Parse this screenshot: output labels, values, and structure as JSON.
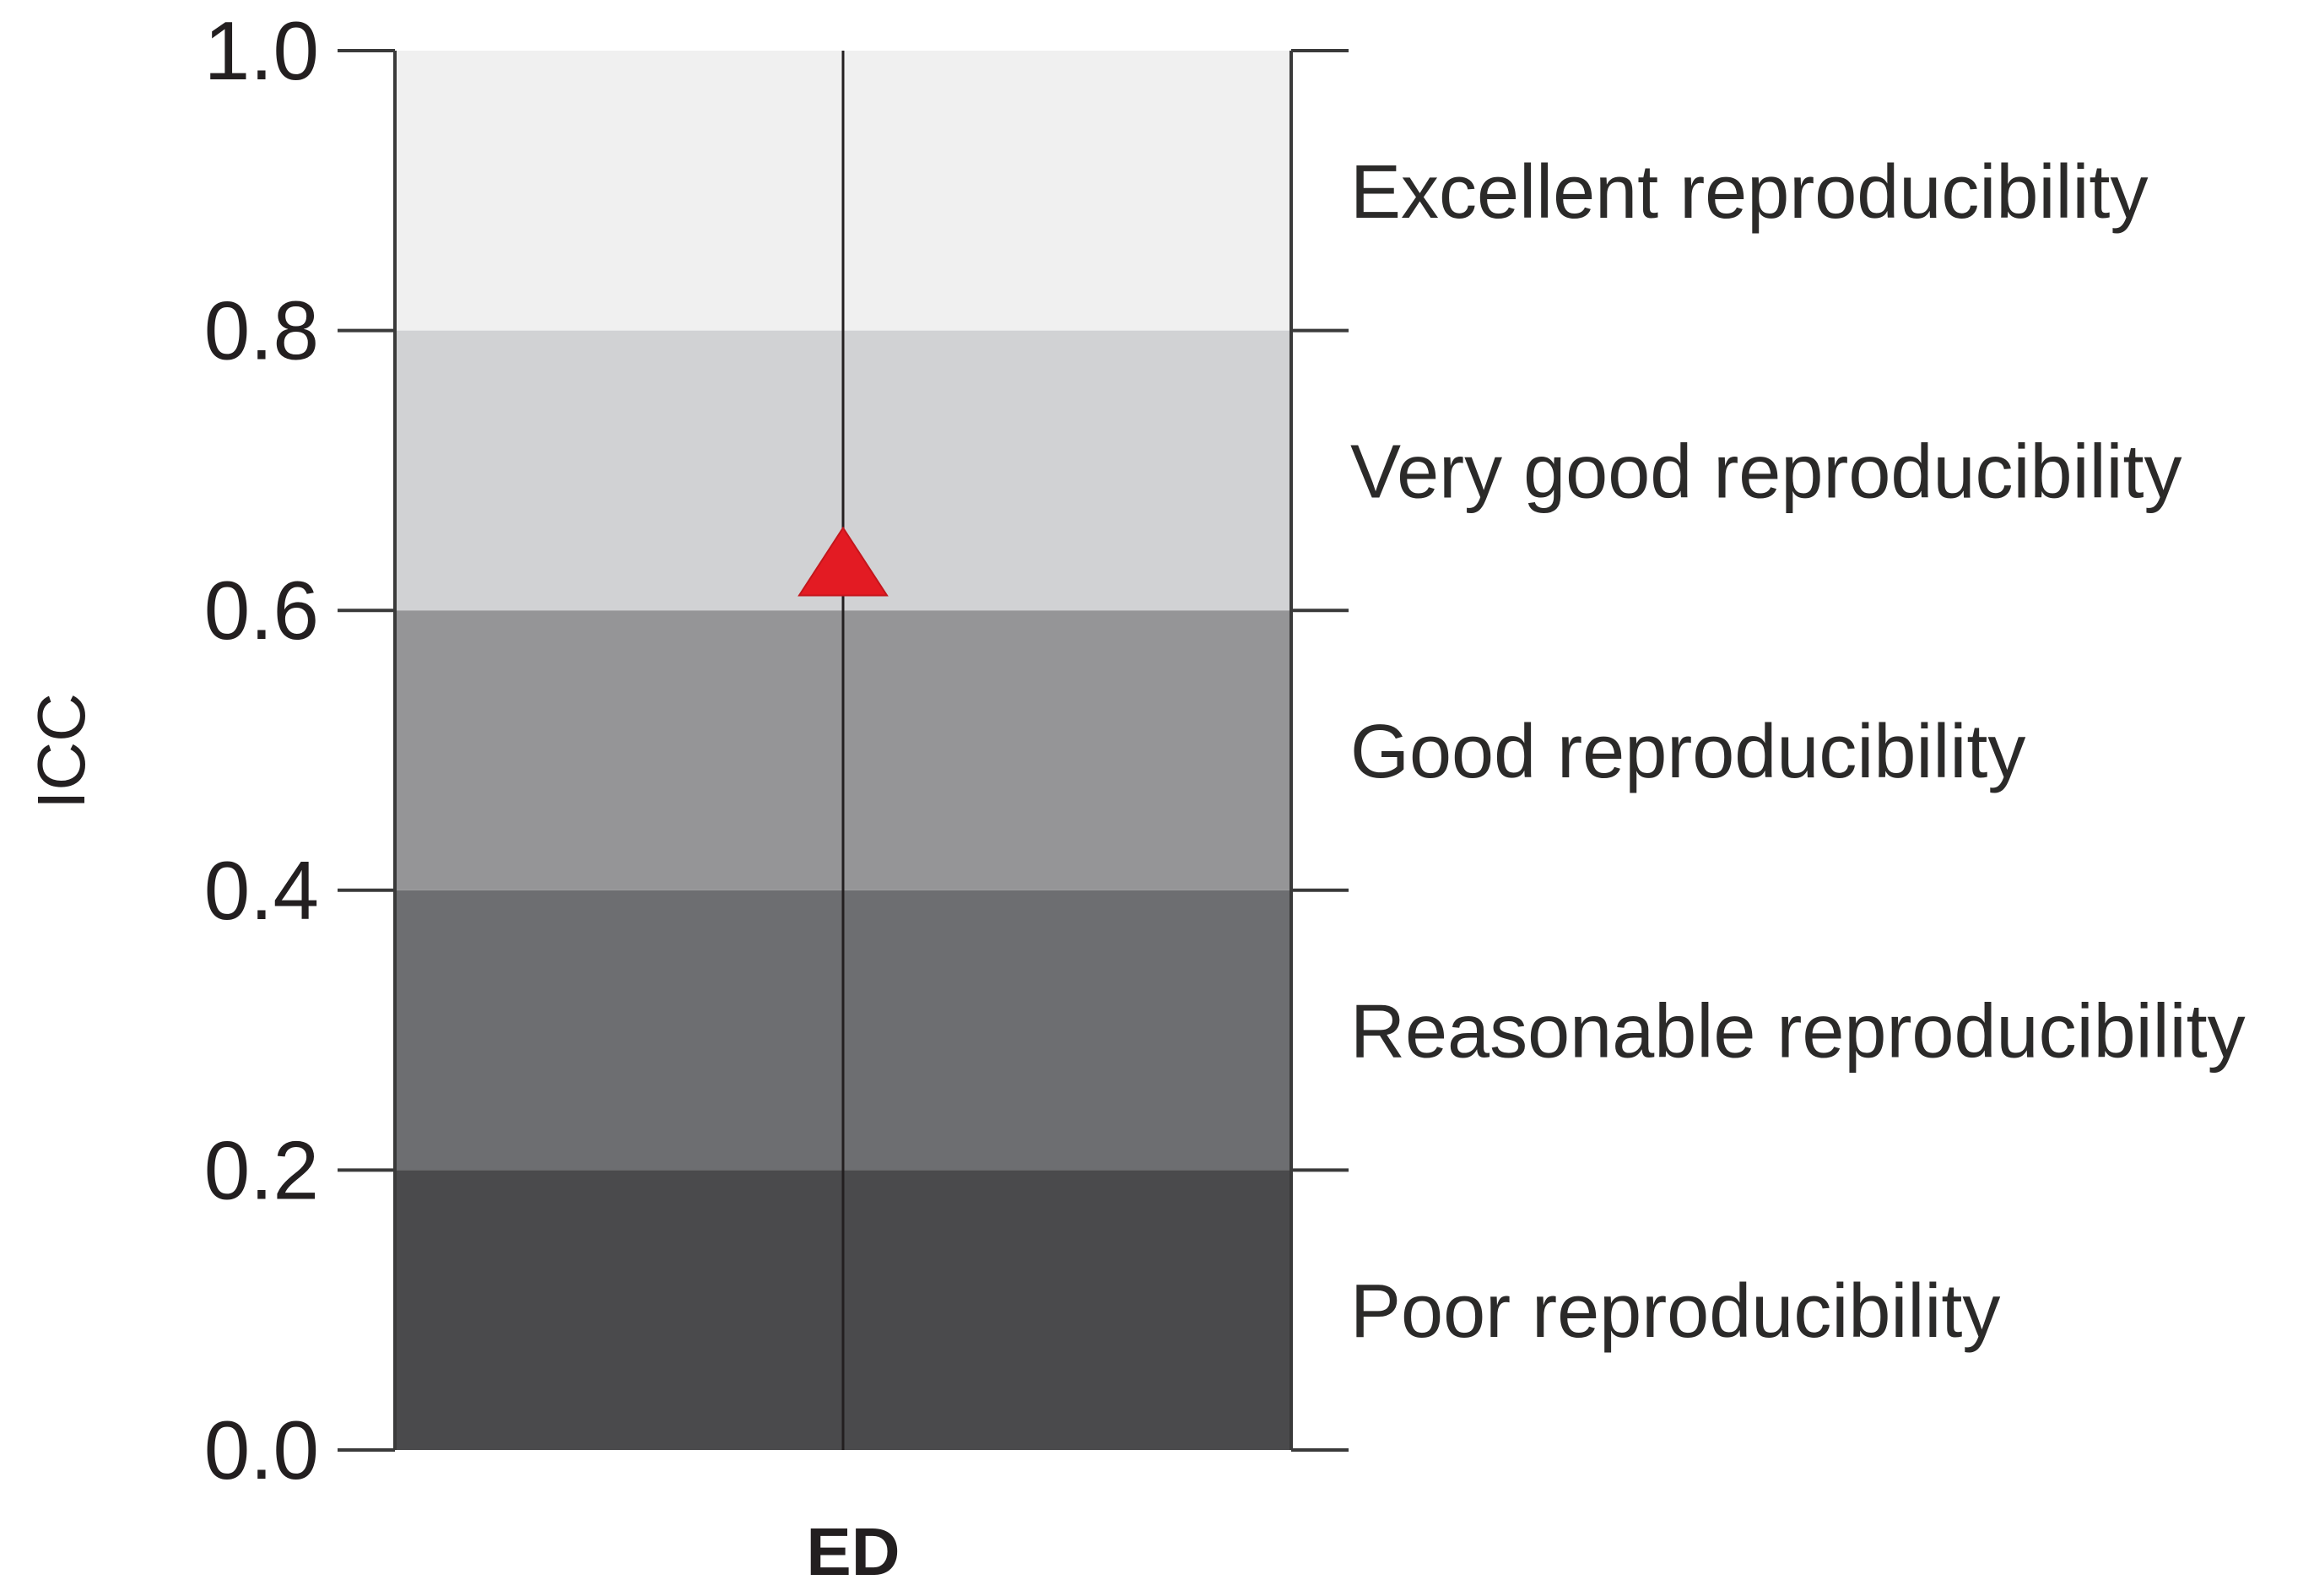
{
  "chart_data": {
    "type": "scatter",
    "ylabel": "ICC",
    "ylim": [
      0,
      1
    ],
    "yticks": [
      "0.0",
      "0.2",
      "0.4",
      "0.6",
      "0.8",
      "1.0"
    ],
    "ytick_values": [
      0,
      0.2,
      0.4,
      0.6,
      0.8,
      1.0
    ],
    "categories": [
      "ED"
    ],
    "points": [
      {
        "category": "ED",
        "y": 0.63
      }
    ],
    "marker": "triangle",
    "marker_color": "#e31b23",
    "bands": [
      {
        "from": 0.0,
        "to": 0.2,
        "label": "Poor reproducibility",
        "color": "#4a4a4c"
      },
      {
        "from": 0.2,
        "to": 0.4,
        "label": "Reasonable reproducibility",
        "color": "#6d6e71"
      },
      {
        "from": 0.4,
        "to": 0.6,
        "label": "Good reproducibility",
        "color": "#959597"
      },
      {
        "from": 0.6,
        "to": 0.8,
        "label": "Very good reproducibility",
        "color": "#d1d2d4"
      },
      {
        "from": 0.8,
        "to": 1.0,
        "label": "Excellent reproducibility",
        "color": "#f0f0f0"
      }
    ]
  }
}
